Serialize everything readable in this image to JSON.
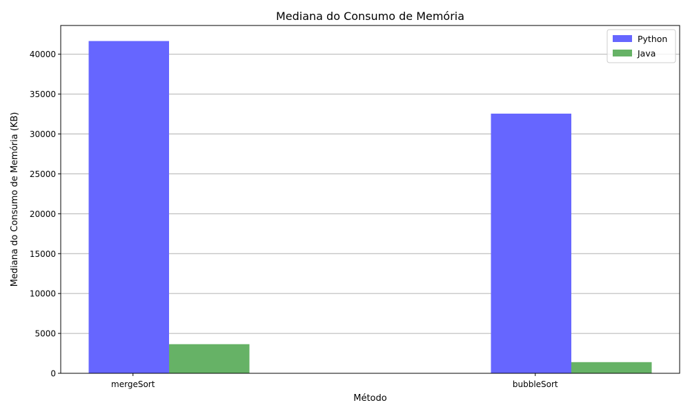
{
  "chart_data": {
    "type": "bar",
    "title": "Mediana do Consumo de Memória",
    "xlabel": "Método",
    "ylabel": "Mediana do Consumo de Memória (KB)",
    "categories": [
      "mergeSort",
      "bubbleSort"
    ],
    "series": [
      {
        "name": "Python",
        "values": [
          41650,
          32550
        ],
        "color": "#6666ff"
      },
      {
        "name": "Java",
        "values": [
          3650,
          1400
        ],
        "color": "#66b266"
      }
    ],
    "ylim": [
      0,
      43600
    ],
    "yticks": [
      0,
      5000,
      10000,
      15000,
      20000,
      25000,
      30000,
      35000,
      40000
    ],
    "grid": {
      "y": true,
      "x": false
    },
    "legend_position": "top-right"
  }
}
